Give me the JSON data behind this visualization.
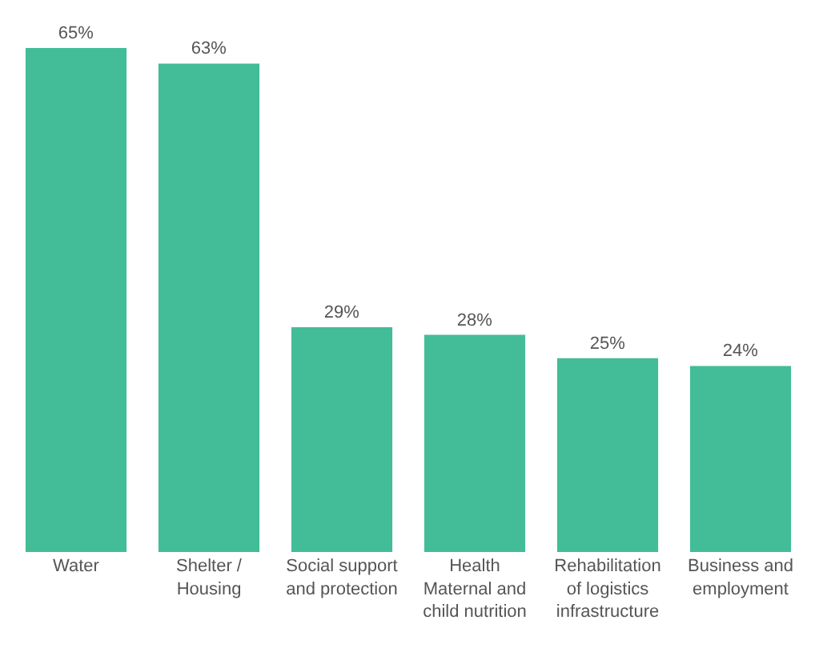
{
  "chart_data": {
    "type": "bar",
    "categories": [
      "Water",
      "Shelter /\nHousing",
      "Social support\nand protection",
      "Health\nMaternal and\nchild nutrition",
      "Rehabilitation\nof logistics\ninfrastructure",
      "Business and\nemployment"
    ],
    "values": [
      65,
      63,
      29,
      28,
      25,
      24
    ],
    "value_labels": [
      "65%",
      "63%",
      "29%",
      "28%",
      "25%",
      "24%"
    ],
    "color": "#42bd97",
    "ylim": [
      0,
      65
    ],
    "legend": false
  }
}
